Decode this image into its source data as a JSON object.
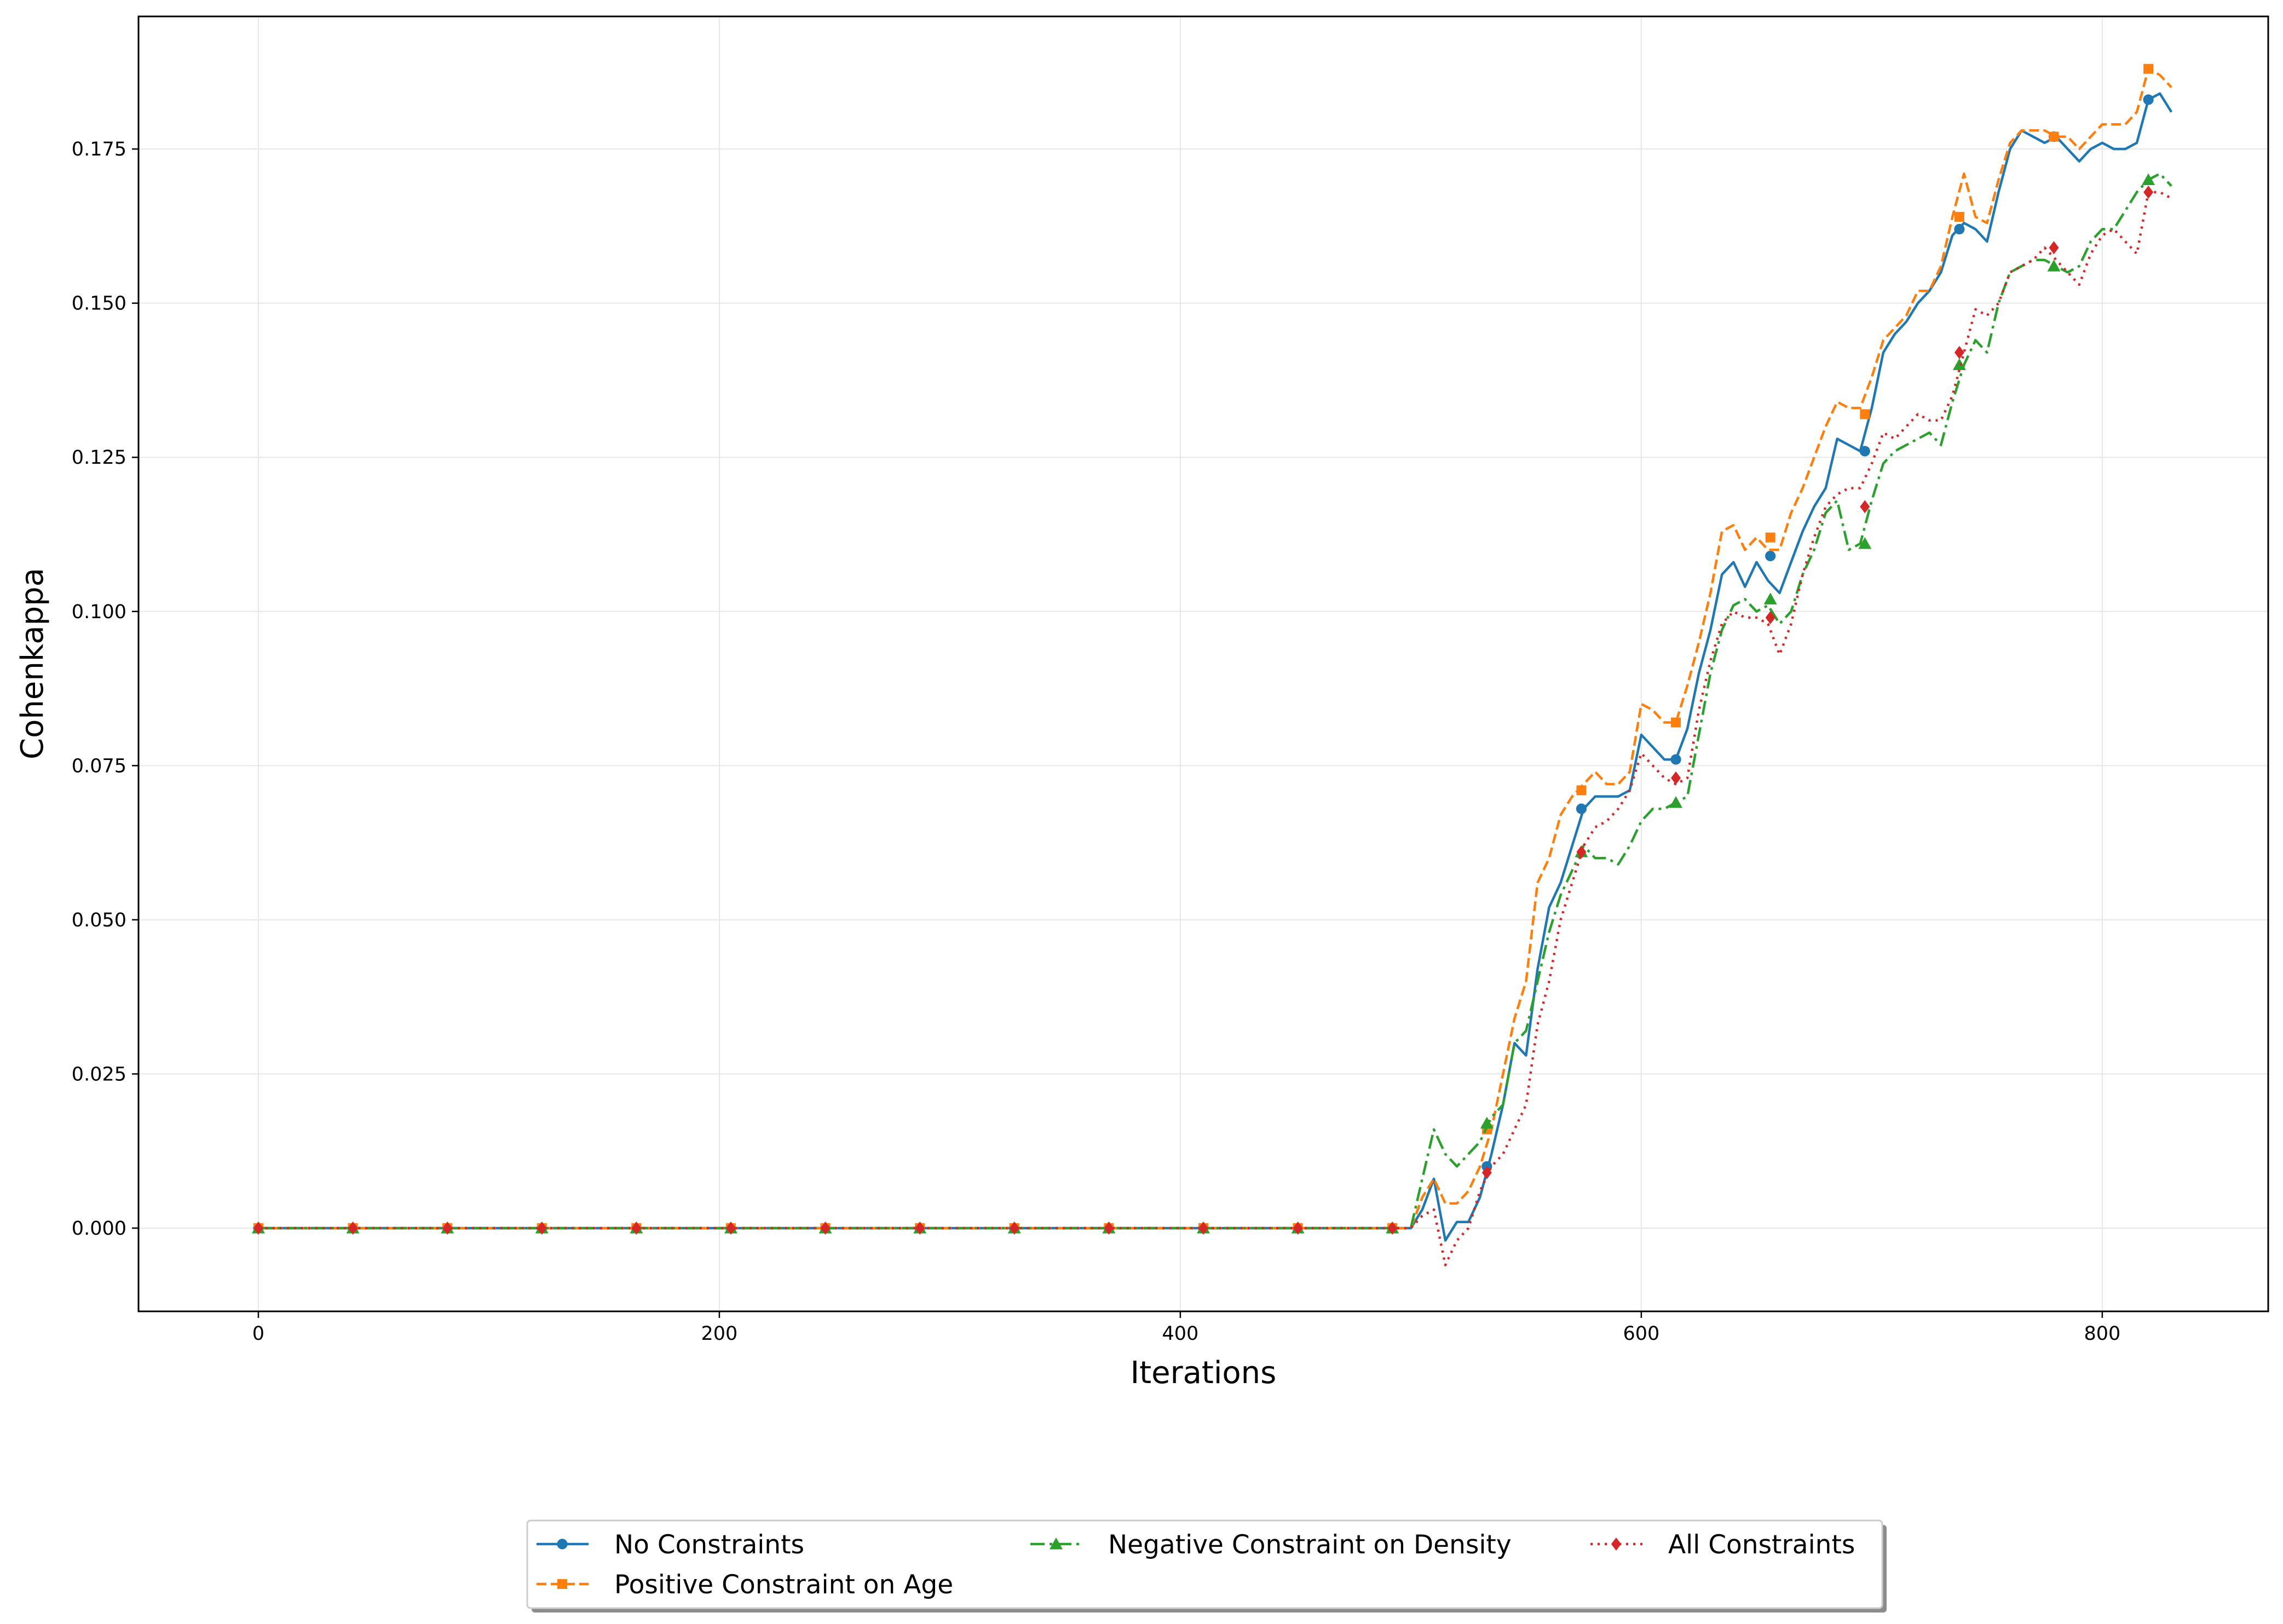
{
  "chart_data": {
    "type": "line",
    "xlabel": "Iterations",
    "ylabel": "Cohenkappa",
    "xlim": [
      -52,
      872
    ],
    "ylim": [
      -0.0135,
      0.1965
    ],
    "xticks": [
      0,
      200,
      400,
      600,
      800
    ],
    "yticks": [
      0.0,
      0.025,
      0.05,
      0.075,
      0.1,
      0.125,
      0.15,
      0.175
    ],
    "ytick_labels": [
      "0.000",
      "0.025",
      "0.050",
      "0.075",
      "0.100",
      "0.125",
      "0.150",
      "0.175"
    ],
    "grid": true,
    "legend_position": "below center",
    "series": [
      {
        "name": "No Constraints",
        "color": "#1f77b4",
        "dash": "solid",
        "marker": "circle",
        "x": [
          0,
          500,
          505,
          510,
          515,
          520,
          525,
          530,
          535,
          540,
          545,
          550,
          555,
          560,
          565,
          570,
          575,
          580,
          585,
          590,
          595,
          600,
          605,
          610,
          615,
          620,
          625,
          630,
          635,
          640,
          645,
          650,
          655,
          660,
          665,
          670,
          675,
          680,
          685,
          690,
          695,
          700,
          705,
          710,
          715,
          720,
          725,
          730,
          735,
          740,
          745,
          750,
          755,
          760,
          765,
          770,
          775,
          780,
          785,
          790,
          795,
          800,
          805,
          810,
          815,
          820,
          825,
          830
        ],
        "y": [
          0.0,
          0.0,
          0.003,
          0.008,
          -0.002,
          0.001,
          0.001,
          0.005,
          0.012,
          0.02,
          0.03,
          0.028,
          0.042,
          0.052,
          0.056,
          0.062,
          0.068,
          0.07,
          0.07,
          0.07,
          0.071,
          0.08,
          0.078,
          0.076,
          0.076,
          0.081,
          0.09,
          0.097,
          0.106,
          0.108,
          0.104,
          0.108,
          0.105,
          0.103,
          0.108,
          0.113,
          0.117,
          0.12,
          0.128,
          0.127,
          0.126,
          0.133,
          0.142,
          0.145,
          0.147,
          0.15,
          0.152,
          0.155,
          0.161,
          0.163,
          0.162,
          0.16,
          0.168,
          0.175,
          0.178,
          0.177,
          0.176,
          0.177,
          0.175,
          0.173,
          0.175,
          0.176,
          0.175,
          0.175,
          0.176,
          0.183,
          0.184,
          0.181
        ],
        "marker_x": [
          0,
          41,
          82,
          123,
          164,
          205,
          246,
          287,
          328,
          369,
          410,
          451,
          492,
          533,
          574,
          615,
          656,
          697,
          738,
          779,
          820
        ],
        "marker_y": [
          0.0,
          0.0,
          0.0,
          0.0,
          0.0,
          0.0,
          0.0,
          0.0,
          0.0,
          0.0,
          0.0,
          0.0,
          0.0,
          0.01,
          0.068,
          0.076,
          0.109,
          0.126,
          0.162,
          0.177,
          0.183
        ]
      },
      {
        "name": "Positive Constraint on Age",
        "color": "#ff7f0e",
        "dash": "dashed",
        "marker": "square",
        "x": [
          0,
          500,
          505,
          510,
          515,
          520,
          525,
          530,
          535,
          540,
          545,
          550,
          555,
          560,
          565,
          570,
          575,
          580,
          585,
          590,
          595,
          600,
          605,
          610,
          615,
          620,
          625,
          630,
          635,
          640,
          645,
          650,
          655,
          660,
          665,
          670,
          675,
          680,
          685,
          690,
          695,
          700,
          705,
          710,
          715,
          720,
          725,
          730,
          735,
          740,
          745,
          750,
          755,
          760,
          765,
          770,
          775,
          780,
          785,
          790,
          795,
          800,
          805,
          810,
          815,
          820,
          825,
          830
        ],
        "y": [
          0.0,
          0.0,
          0.005,
          0.008,
          0.004,
          0.004,
          0.006,
          0.01,
          0.016,
          0.025,
          0.034,
          0.04,
          0.056,
          0.06,
          0.067,
          0.07,
          0.072,
          0.074,
          0.072,
          0.072,
          0.074,
          0.085,
          0.084,
          0.082,
          0.082,
          0.088,
          0.095,
          0.103,
          0.113,
          0.114,
          0.11,
          0.112,
          0.11,
          0.11,
          0.116,
          0.12,
          0.125,
          0.13,
          0.134,
          0.133,
          0.133,
          0.138,
          0.144,
          0.146,
          0.148,
          0.152,
          0.152,
          0.156,
          0.164,
          0.171,
          0.164,
          0.163,
          0.17,
          0.176,
          0.178,
          0.178,
          0.178,
          0.177,
          0.177,
          0.175,
          0.177,
          0.179,
          0.179,
          0.179,
          0.181,
          0.188,
          0.187,
          0.185
        ],
        "marker_x": [
          0,
          41,
          82,
          123,
          164,
          205,
          246,
          287,
          328,
          369,
          410,
          451,
          492,
          533,
          574,
          615,
          656,
          697,
          738,
          779,
          820
        ],
        "marker_y": [
          0.0,
          0.0,
          0.0,
          0.0,
          0.0,
          0.0,
          0.0,
          0.0,
          0.0,
          0.0,
          0.0,
          0.0,
          0.0,
          0.016,
          0.071,
          0.082,
          0.112,
          0.132,
          0.164,
          0.177,
          0.188
        ]
      },
      {
        "name": "Negative Constraint on Density",
        "color": "#2ca02c",
        "dash": "dashdot",
        "marker": "triangle",
        "x": [
          0,
          500,
          505,
          510,
          515,
          520,
          525,
          530,
          535,
          540,
          545,
          550,
          555,
          560,
          565,
          570,
          575,
          580,
          585,
          590,
          595,
          600,
          605,
          610,
          615,
          620,
          625,
          630,
          635,
          640,
          645,
          650,
          655,
          660,
          665,
          670,
          675,
          680,
          685,
          690,
          695,
          700,
          705,
          710,
          715,
          720,
          725,
          730,
          735,
          740,
          745,
          750,
          755,
          760,
          765,
          770,
          775,
          780,
          785,
          790,
          795,
          800,
          805,
          810,
          815,
          820,
          825,
          830
        ],
        "y": [
          0.0,
          0.0,
          0.008,
          0.016,
          0.012,
          0.01,
          0.012,
          0.014,
          0.018,
          0.02,
          0.03,
          0.032,
          0.04,
          0.048,
          0.054,
          0.058,
          0.062,
          0.06,
          0.06,
          0.059,
          0.062,
          0.066,
          0.068,
          0.068,
          0.069,
          0.07,
          0.08,
          0.09,
          0.097,
          0.101,
          0.102,
          0.1,
          0.101,
          0.098,
          0.1,
          0.106,
          0.11,
          0.116,
          0.118,
          0.11,
          0.111,
          0.118,
          0.124,
          0.126,
          0.127,
          0.128,
          0.129,
          0.127,
          0.134,
          0.14,
          0.144,
          0.142,
          0.15,
          0.155,
          0.156,
          0.157,
          0.157,
          0.156,
          0.155,
          0.156,
          0.16,
          0.162,
          0.162,
          0.165,
          0.168,
          0.17,
          0.171,
          0.169
        ],
        "marker_x": [
          0,
          41,
          82,
          123,
          164,
          205,
          246,
          287,
          328,
          369,
          410,
          451,
          492,
          533,
          574,
          615,
          656,
          697,
          738,
          779,
          820
        ],
        "marker_y": [
          0.0,
          0.0,
          0.0,
          0.0,
          0.0,
          0.0,
          0.0,
          0.0,
          0.0,
          0.0,
          0.0,
          0.0,
          0.0,
          0.017,
          0.061,
          0.069,
          0.102,
          0.111,
          0.14,
          0.156,
          0.17
        ]
      },
      {
        "name": "All Constraints",
        "color": "#d62728",
        "dash": "dotted",
        "marker": "diamond",
        "x": [
          0,
          500,
          505,
          510,
          515,
          520,
          525,
          530,
          535,
          540,
          545,
          550,
          555,
          560,
          565,
          570,
          575,
          580,
          585,
          590,
          595,
          600,
          605,
          610,
          615,
          620,
          625,
          630,
          635,
          640,
          645,
          650,
          655,
          660,
          665,
          670,
          675,
          680,
          685,
          690,
          695,
          700,
          705,
          710,
          715,
          720,
          725,
          730,
          735,
          740,
          745,
          750,
          755,
          760,
          765,
          770,
          775,
          780,
          785,
          790,
          795,
          800,
          805,
          810,
          815,
          820,
          825,
          830
        ],
        "y": [
          0.0,
          0.0,
          0.002,
          0.003,
          -0.006,
          -0.002,
          0.0,
          0.006,
          0.01,
          0.012,
          0.016,
          0.02,
          0.033,
          0.04,
          0.05,
          0.056,
          0.062,
          0.065,
          0.066,
          0.068,
          0.071,
          0.077,
          0.075,
          0.073,
          0.072,
          0.073,
          0.084,
          0.092,
          0.098,
          0.1,
          0.099,
          0.099,
          0.098,
          0.093,
          0.098,
          0.106,
          0.112,
          0.117,
          0.119,
          0.12,
          0.12,
          0.124,
          0.129,
          0.128,
          0.13,
          0.132,
          0.131,
          0.131,
          0.135,
          0.142,
          0.149,
          0.148,
          0.15,
          0.155,
          0.156,
          0.157,
          0.159,
          0.157,
          0.155,
          0.153,
          0.158,
          0.161,
          0.162,
          0.16,
          0.158,
          0.168,
          0.168,
          0.167
        ],
        "marker_x": [
          0,
          41,
          82,
          123,
          164,
          205,
          246,
          287,
          328,
          369,
          410,
          451,
          492,
          533,
          574,
          615,
          656,
          697,
          738,
          779,
          820
        ],
        "marker_y": [
          0.0,
          0.0,
          0.0,
          0.0,
          0.0,
          0.0,
          0.0,
          0.0,
          0.0,
          0.0,
          0.0,
          0.0,
          0.0,
          0.009,
          0.061,
          0.073,
          0.099,
          0.117,
          0.142,
          0.159,
          0.168
        ]
      }
    ]
  }
}
